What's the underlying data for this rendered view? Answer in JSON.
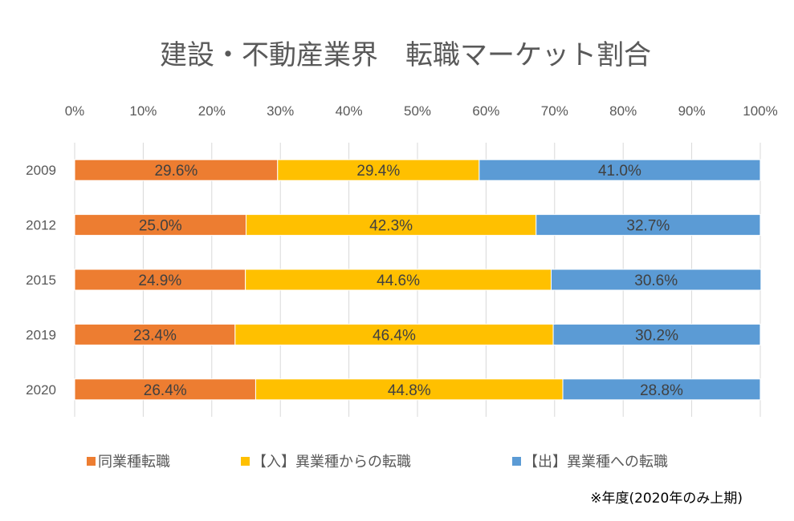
{
  "chart_data": {
    "type": "bar",
    "orientation": "horizontal",
    "stacked": "percent",
    "title": "建設・不動産業界　転職マーケット割合",
    "categories": [
      "2009",
      "2012",
      "2015",
      "2019",
      "2020"
    ],
    "series": [
      {
        "name": "同業種転職",
        "color": "#ED7D31",
        "values": [
          29.6,
          25.0,
          24.9,
          23.4,
          26.4
        ],
        "labels": [
          "29.6%",
          "25.0%",
          "24.9%",
          "23.4%",
          "26.4%"
        ]
      },
      {
        "name": "【入】異業種からの転職",
        "color": "#FFC000",
        "values": [
          29.4,
          42.3,
          44.6,
          46.4,
          44.8
        ],
        "labels": [
          "29.4%",
          "42.3%",
          "44.6%",
          "46.4%",
          "44.8%"
        ]
      },
      {
        "name": "【出】異業種への転職",
        "color": "#5B9BD5",
        "values": [
          41.0,
          32.7,
          30.6,
          30.2,
          28.8
        ],
        "labels": [
          "41.0%",
          "32.7%",
          "30.6%",
          "30.2%",
          "28.8%"
        ]
      }
    ],
    "xlim": [
      0,
      100
    ],
    "xticks": [
      "0%",
      "10%",
      "20%",
      "30%",
      "40%",
      "50%",
      "60%",
      "70%",
      "80%",
      "90%",
      "100%"
    ],
    "xaxis_position": "top",
    "grid": true,
    "legend_position": "bottom",
    "note": "※年度(2020年のみ上期)"
  }
}
